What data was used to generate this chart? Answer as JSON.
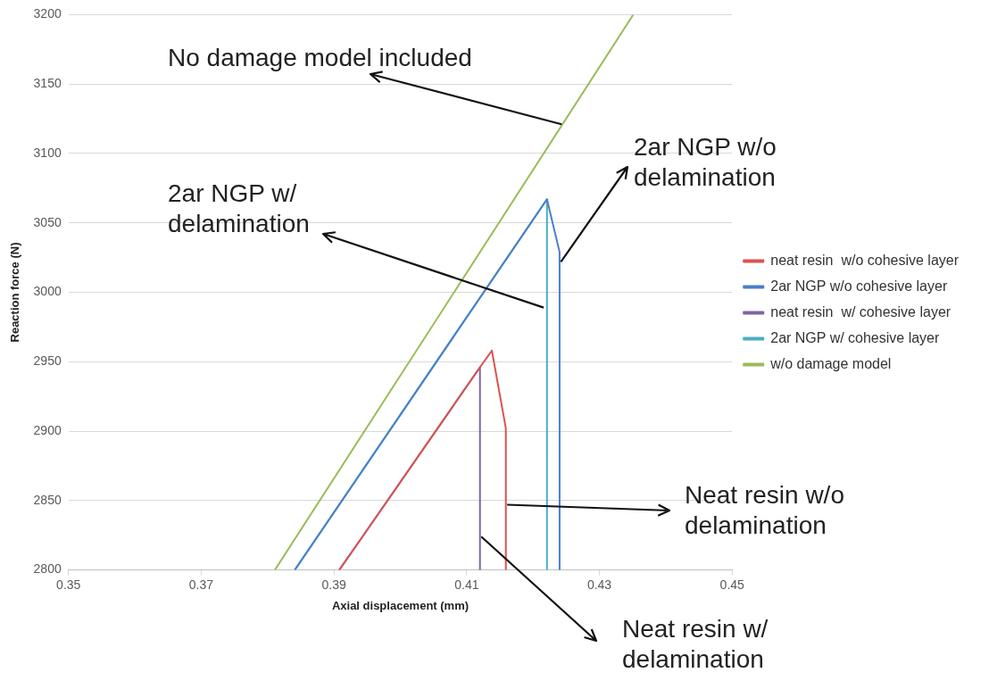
{
  "chart_data": {
    "type": "line",
    "xlabel": "Axial displacement (mm)",
    "ylabel": "Reaction force (N)",
    "xlim": [
      0.35,
      0.45
    ],
    "xticks": [
      0.35,
      0.37,
      0.39,
      0.41,
      0.43,
      0.45
    ],
    "ylim": [
      2800,
      3200
    ],
    "yticks": [
      2800,
      2850,
      2900,
      2950,
      3000,
      3050,
      3100,
      3150,
      3200
    ],
    "grid": "y",
    "legend": "right",
    "marker": "none",
    "line_style": "solid",
    "annotations": [
      {
        "text": "No damage model included",
        "x": 0.4243,
        "y": 3121
      },
      {
        "text": "2ar NGP w/o delamination",
        "x": 0.4242,
        "y": 3022
      },
      {
        "text": "2ar NGP w/ delamination",
        "x": 0.4216,
        "y": 2989
      },
      {
        "text": "Neat resin w/o delamination",
        "x": 0.4161,
        "y": 2847
      },
      {
        "text": "Neat resin w/ delamination",
        "x": 0.4122,
        "y": 2824
      }
    ],
    "series": [
      {
        "name": "neat resin  w/o cohesive layer",
        "color": "#d9534f",
        "x": [
          0.3908,
          0.3943,
          0.412,
          0.4138,
          0.4159,
          0.4159
        ],
        "values": [
          2800,
          2824,
          2946,
          2958,
          2902,
          2800
        ]
      },
      {
        "name": "2ar NGP w/o cohesive layer",
        "color": "#4a7fc8",
        "x": [
          0.3841,
          0.4221,
          0.424,
          0.424
        ],
        "values": [
          2800,
          3067,
          3029,
          2800
        ]
      },
      {
        "name": "neat resin  w/ cohesive layer",
        "color": "#8064a2",
        "x": [
          0.3908,
          0.3943,
          0.412,
          0.412
        ],
        "values": [
          2800,
          2824,
          2946,
          2800
        ]
      },
      {
        "name": "2ar NGP w/ cohesive layer",
        "color": "#4bacc6",
        "x": [
          0.3841,
          0.4221,
          0.4221
        ],
        "values": [
          2800,
          3067,
          2800
        ]
      },
      {
        "name": "w/o damage model",
        "color": "#9bbb59",
        "x": [
          0.3811,
          0.4351
        ],
        "values": [
          2800,
          3200
        ]
      }
    ]
  }
}
